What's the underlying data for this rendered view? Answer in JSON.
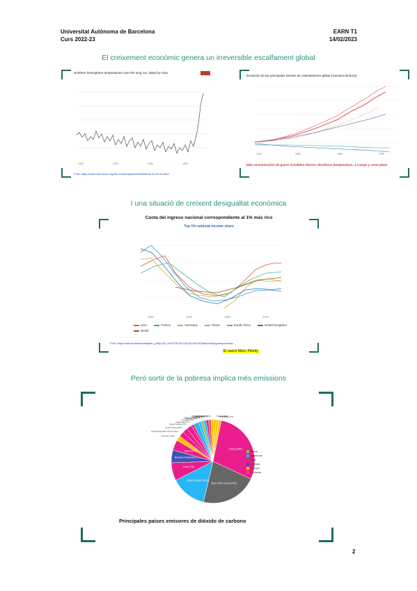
{
  "header": {
    "university": "Universitat Autònoma de Barcelona",
    "course": "Curs 2022-23",
    "code": "EARN T1",
    "date": "14/02/2023"
  },
  "section1": {
    "title": "El creixement econòmic genera un irreversible escalfament global",
    "fig_left": {
      "title": "Northern hemisphere temperatures over the long run, dated by Xiao",
      "link": "Font: https://www.core-econ.org/the-economy/book/text/leibniz-01-01-01.html"
    },
    "fig_right": {
      "title": "Evolución de las principales fuentes de calentamiento global (Gamitos de Bora)",
      "caption": "Más concentración de gases invisibles efectos climáticos (temperatura...) a largo y corto plazo"
    }
  },
  "section2": {
    "title": "I una situació de creixent desigualtat econòmica",
    "chart_title": "Cuota del ingreso nacional correspondiente al 1% más rico",
    "chart_subtitle": "Top 1% national income share",
    "legend": [
      "USA",
      "France",
      "Germany",
      "China",
      "South Africa",
      "United Kingdom",
      "World"
    ],
    "x_ticks": [
      "1900",
      "1940",
      "1980",
      "2020"
    ],
    "source": "Font: https://wid.world/world#sptinc_p99p100_z/US;FR;DE;CN;ZA;GB;WO/last/eu/k/p/yearly/s/false/...",
    "author": "El nuevo Marx, Piketty",
    "colors": {
      "USA": "#e4572e",
      "France": "#2f9bd6",
      "Germany": "#c8b33a",
      "China": "#f0a030",
      "South Africa": "#43b5a0",
      "United Kingdom": "#1f77b4",
      "World": "#8a5a2b"
    }
  },
  "section3": {
    "title": "Però sortir de la pobresa implica més emissions",
    "caption": "Principales países emisores de dióxido de carbono",
    "legend": [
      "Africa",
      "Americas",
      "Asia",
      "Eurasia",
      "Europe",
      "Oceania"
    ],
    "legend_colors": [
      "#8bc34a",
      "#29b6f6",
      "#e91e8c",
      "#3f51b5",
      "#ffc107",
      "#ef5350"
    ],
    "slices": [
      {
        "label": "China (29%)",
        "value": 29,
        "color": "#e91e8c"
      },
      {
        "label": "Rest of the world (22%)",
        "value": 22,
        "color": "#666666"
      },
      {
        "label": "United States (14%)",
        "value": 14,
        "color": "#29b6f6"
      },
      {
        "label": "India (7%)",
        "value": 7,
        "color": "#e91e8c"
      },
      {
        "label": "Russian Federation (5%)",
        "value": 5,
        "color": "#3f51b5"
      },
      {
        "label": "Japan (4%)",
        "value": 4,
        "color": "#e91e8c"
      },
      {
        "label": "Germany (2%)",
        "value": 2,
        "color": "#ffc107"
      },
      {
        "label": "Islamic Republic of Iran (2%)",
        "value": 2,
        "color": "#e91e8c"
      },
      {
        "label": "South Korea (2%)",
        "value": 2,
        "color": "#e91e8c"
      },
      {
        "label": "Saudi Arabia (2%)",
        "value": 2,
        "color": "#e91e8c"
      },
      {
        "label": "Indonesia (1%)",
        "value": 1,
        "color": "#e91e8c"
      },
      {
        "label": "Canada (2%)",
        "value": 2,
        "color": "#29b6f6"
      },
      {
        "label": "Mexico (1%)",
        "value": 1,
        "color": "#29b6f6"
      },
      {
        "label": "South Africa (1%)",
        "value": 1,
        "color": "#8bc34a"
      },
      {
        "label": "Brazil (1%)",
        "value": 1,
        "color": "#29b6f6"
      },
      {
        "label": "Turkey (1%)",
        "value": 1,
        "color": "#e91e8c"
      },
      {
        "label": "Australia (1%)",
        "value": 1,
        "color": "#ef5350"
      },
      {
        "label": "United Kingdom (1%)",
        "value": 1,
        "color": "#ffc107"
      },
      {
        "label": "Poland (1%)",
        "value": 1,
        "color": "#ffc107"
      },
      {
        "label": "Italy (1%)",
        "value": 1,
        "color": "#ffc107"
      },
      {
        "label": "France (1%)",
        "value": 1,
        "color": "#ffc107"
      }
    ]
  },
  "page_number": "2"
}
